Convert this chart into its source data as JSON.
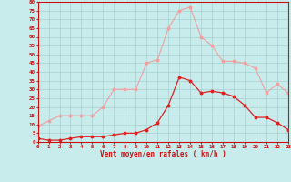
{
  "hours": [
    0,
    1,
    2,
    3,
    4,
    5,
    6,
    7,
    8,
    9,
    10,
    11,
    12,
    13,
    14,
    15,
    16,
    17,
    18,
    19,
    20,
    21,
    22,
    23
  ],
  "wind_avg": [
    2,
    1,
    1,
    2,
    3,
    3,
    3,
    4,
    5,
    5,
    7,
    11,
    21,
    37,
    35,
    28,
    29,
    28,
    26,
    21,
    14,
    14,
    11,
    7
  ],
  "wind_gust": [
    9,
    12,
    15,
    15,
    15,
    15,
    20,
    30,
    30,
    30,
    45,
    47,
    65,
    75,
    77,
    60,
    55,
    46,
    46,
    45,
    42,
    28,
    33,
    28
  ],
  "line_avg_color": "#dd2222",
  "line_gust_color": "#f0a0a0",
  "bg_color": "#c8ecec",
  "grid_color": "#a8d0d0",
  "xlabel": "Vent moyen/en rafales ( km/h )",
  "ylabel_values": [
    0,
    5,
    10,
    15,
    20,
    25,
    30,
    35,
    40,
    45,
    50,
    55,
    60,
    65,
    70,
    75,
    80
  ],
  "ylim": [
    0,
    80
  ],
  "xlim": [
    0,
    23
  ]
}
